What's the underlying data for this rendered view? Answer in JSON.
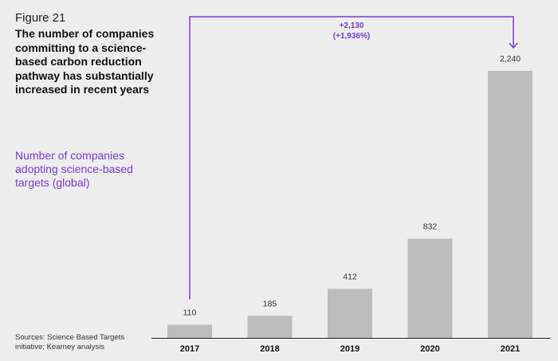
{
  "figure_label": "Figure 21",
  "title": "The number of companies committing to a science-based carbon reduction pathway has substantially increased in recent years",
  "subtitle": "Number of companies adopting science-based targets (global)",
  "source": "Sources: Science Based Targets initiative; Kearney analysis",
  "colors": {
    "bar": "#bdbdbd",
    "accent": "#7a3cd6",
    "baseline": "#222222"
  },
  "chart_data": {
    "type": "bar",
    "categories": [
      "2017",
      "2018",
      "2019",
      "2020",
      "2021"
    ],
    "values": [
      110,
      185,
      412,
      832,
      2240
    ],
    "value_labels": [
      "110",
      "185",
      "412",
      "832",
      "2,240"
    ],
    "ylim": [
      0,
      2240
    ],
    "grid": false,
    "annotation": {
      "from": "2017",
      "to": "2021",
      "line1": "+2,130",
      "line2": "(+1,936%)"
    }
  }
}
